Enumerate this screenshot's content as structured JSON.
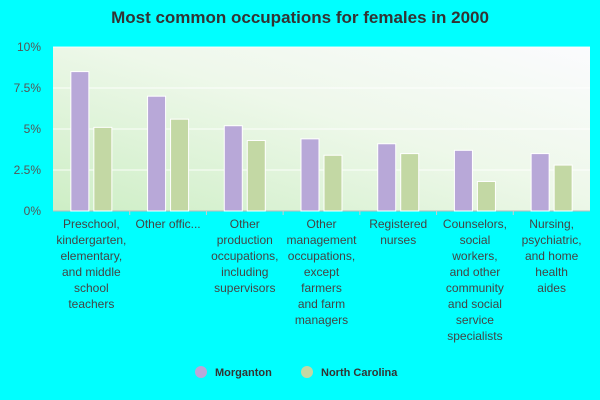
{
  "chart_data": {
    "type": "bar",
    "title": "Most common occupations for females in 2000",
    "xlabel": "",
    "ylabel": "",
    "ylim": [
      0,
      10
    ],
    "yticks": [
      0,
      2.5,
      5,
      7.5,
      10
    ],
    "ytick_labels": [
      "0%",
      "2.5%",
      "5%",
      "7.5%",
      "10%"
    ],
    "grid": true,
    "legend_position": "bottom-center",
    "categories": [
      "Preschool, kindergarten, elementary, and middle school teachers",
      "Other offic...",
      "Other production occupations, including supervisors",
      "Other management occupations, except farmers and farm managers",
      "Registered nurses",
      "Counselors, social workers, and other community and social service specialists",
      "Nursing, psychiatric, and home health aides"
    ],
    "category_lines": [
      [
        "Preschool,",
        "kindergarten,",
        "elementary,",
        "and middle",
        "school",
        "teachers"
      ],
      [
        "Other offic..."
      ],
      [
        "Other",
        "production",
        "occupations,",
        "including",
        "supervisors"
      ],
      [
        "Other",
        "management",
        "occupations,",
        "except",
        "farmers",
        "and farm",
        "managers"
      ],
      [
        "Registered",
        "nurses"
      ],
      [
        "Counselors,",
        "social",
        "workers,",
        "and other",
        "community",
        "and social",
        "service",
        "specialists"
      ],
      [
        "Nursing,",
        "psychiatric,",
        "and home",
        "health",
        "aides"
      ]
    ],
    "series": [
      {
        "name": "Morganton",
        "color": "#b8a8d8",
        "values": [
          8.5,
          7.0,
          5.2,
          4.4,
          4.1,
          3.7,
          3.5
        ]
      },
      {
        "name": "North Carolina",
        "color": "#c3d8a4",
        "values": [
          5.1,
          5.6,
          4.3,
          3.4,
          3.5,
          1.8,
          2.8
        ]
      }
    ]
  }
}
